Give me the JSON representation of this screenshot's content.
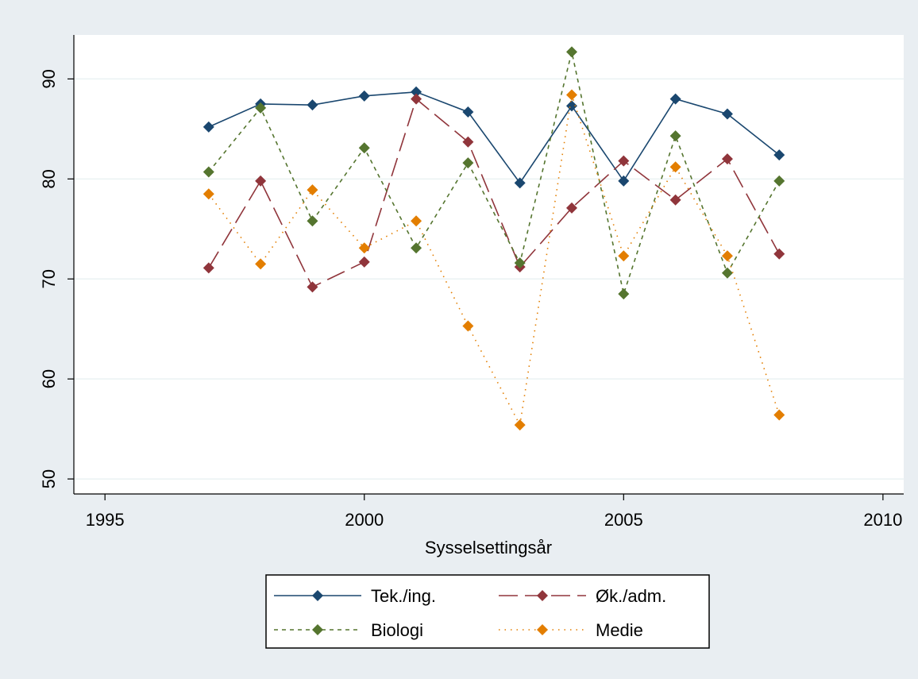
{
  "chart_data": {
    "type": "line",
    "title": "",
    "xlabel": "Sysselsettingsår",
    "ylabel": "",
    "xlim": [
      1994.4,
      2010.4
    ],
    "ylim": [
      48.5,
      94.4
    ],
    "xticks": [
      1995,
      2000,
      2005,
      2010
    ],
    "yticks": [
      50,
      60,
      70,
      80,
      90
    ],
    "grid": true,
    "legend_position": "bottom",
    "x": [
      1997,
      1998,
      1999,
      2000,
      2001,
      2002,
      2003,
      2004,
      2005,
      2006,
      2007,
      2008
    ],
    "series": [
      {
        "name": "Tek./ing.",
        "color": "#1a476f",
        "line_style": "solid",
        "marker": "diamond",
        "values": [
          85.2,
          87.5,
          87.4,
          88.3,
          88.7,
          86.7,
          79.6,
          87.3,
          79.8,
          88.0,
          86.5,
          82.4
        ]
      },
      {
        "name": "Øk./adm.",
        "color": "#90353b",
        "line_style": "longdash",
        "marker": "diamond",
        "values": [
          71.1,
          79.8,
          69.2,
          71.7,
          88.0,
          83.7,
          71.2,
          77.1,
          81.8,
          77.9,
          82.0,
          72.5
        ]
      },
      {
        "name": "Biologi",
        "color": "#55752f",
        "line_style": "dash",
        "marker": "diamond",
        "values": [
          80.7,
          87.1,
          75.8,
          83.1,
          73.1,
          81.6,
          71.6,
          92.7,
          68.5,
          84.3,
          70.6,
          79.8
        ]
      },
      {
        "name": "Medie",
        "color": "#e37e00",
        "line_style": "dot",
        "marker": "diamond",
        "values": [
          78.5,
          71.5,
          78.9,
          73.1,
          75.8,
          65.3,
          55.4,
          88.4,
          72.3,
          81.2,
          72.3,
          56.4
        ]
      }
    ]
  },
  "colors": {
    "background": "#e9eef2",
    "plot_area": "#ffffff",
    "gridline": "#eaf2f3",
    "axis": "#000000"
  }
}
